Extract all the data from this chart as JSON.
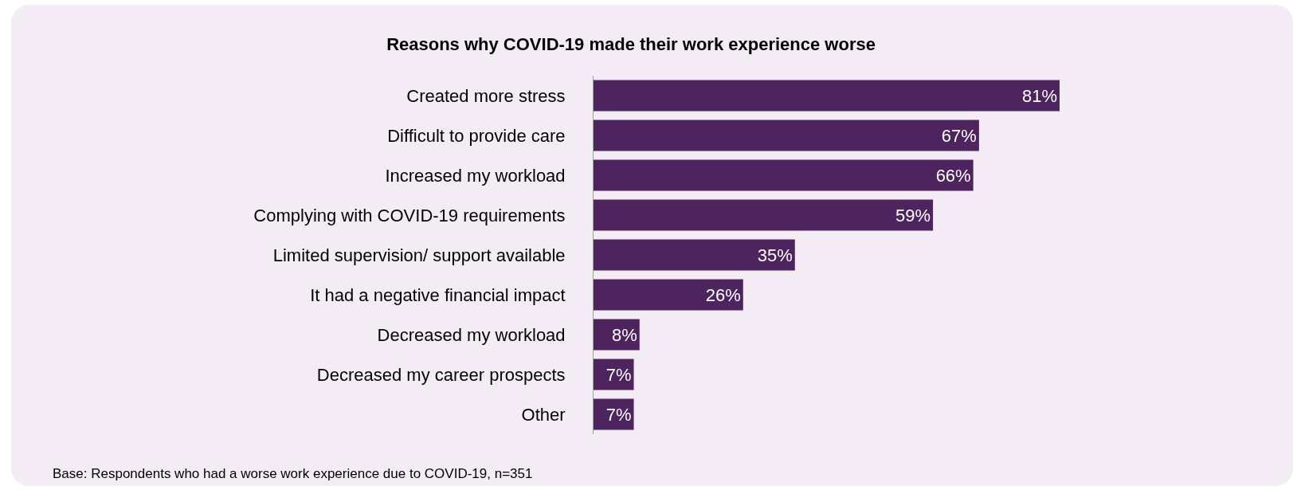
{
  "chart_data": {
    "type": "bar",
    "orientation": "horizontal",
    "title": "Reasons why COVID-19 made their work experience worse",
    "categories": [
      "Created more stress",
      "Difficult to provide care",
      "Increased my workload",
      "Complying with COVID-19 requirements",
      "Limited supervision/ support available",
      "It had a negative financial impact",
      "Decreased my workload",
      "Decreased my career prospects",
      "Other"
    ],
    "values": [
      81,
      67,
      66,
      59,
      35,
      26,
      8,
      7,
      7
    ],
    "value_labels": [
      "81%",
      "67%",
      "66%",
      "59%",
      "35%",
      "26%",
      "8%",
      "7%",
      "7%"
    ],
    "color": "#4e245e",
    "tick_labels": "y",
    "annotations": [
      "Base: Respondents who had a worse work experience due to COVID-19, n=351"
    ]
  }
}
